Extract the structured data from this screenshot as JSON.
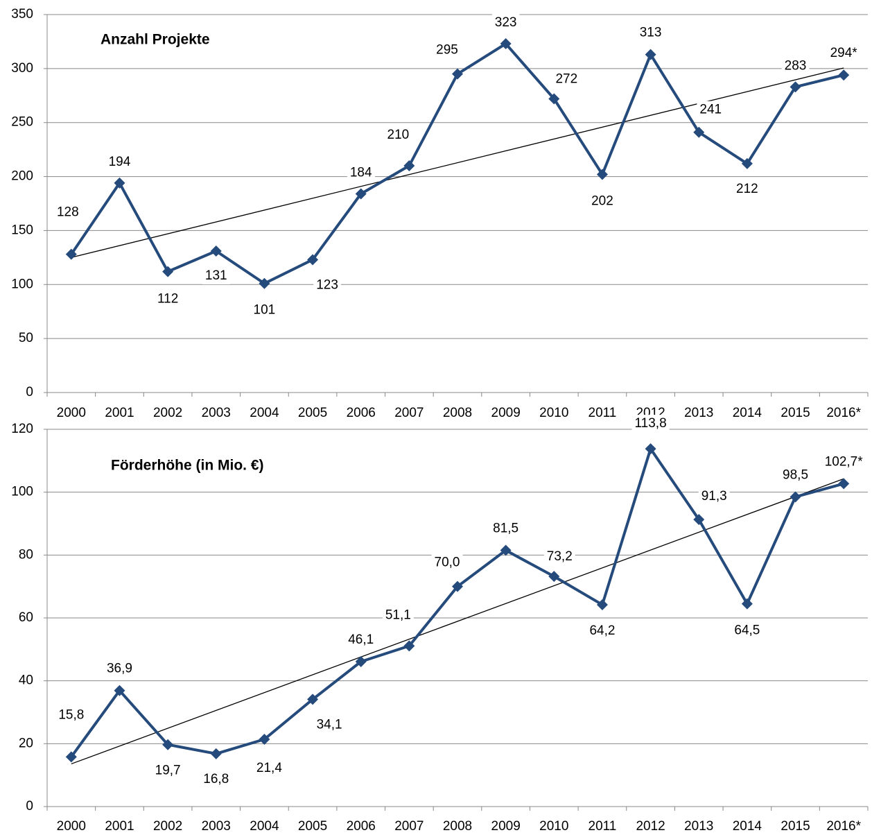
{
  "chart_data": [
    {
      "type": "line",
      "title": "Anzahl Projekte",
      "categories": [
        "2000",
        "2001",
        "2002",
        "2003",
        "2004",
        "2005",
        "2006",
        "2007",
        "2008",
        "2009",
        "2010",
        "2011",
        "2012",
        "2013",
        "2014",
        "2015",
        "2016*"
      ],
      "series": [
        {
          "name": "Anzahl Projekte",
          "color": "#254a7c",
          "values": [
            128,
            194,
            112,
            131,
            101,
            123,
            184,
            210,
            295,
            323,
            272,
            202,
            313,
            241,
            212,
            283,
            294
          ],
          "value_labels": [
            "128",
            "194",
            "112",
            "131",
            "101",
            "123",
            "184",
            "210",
            "295",
            "323",
            "272",
            "202",
            "313",
            "241",
            "212",
            "283",
            "294*"
          ]
        }
      ],
      "ylim": [
        0,
        350
      ],
      "yticks": [
        0,
        50,
        100,
        150,
        200,
        250,
        300,
        350
      ],
      "grid": true,
      "trendline": true
    },
    {
      "type": "line",
      "title": "Förderhöhe (in Mio. €)",
      "categories": [
        "2000",
        "2001",
        "2002",
        "2003",
        "2004",
        "2005",
        "2006",
        "2007",
        "2008",
        "2009",
        "2010",
        "2011",
        "2012",
        "2013",
        "2014",
        "2015",
        "2016*"
      ],
      "series": [
        {
          "name": "Förderhöhe (in Mio. €)",
          "color": "#254a7c",
          "values": [
            15.8,
            36.9,
            19.7,
            16.8,
            21.4,
            34.1,
            46.1,
            51.1,
            70.0,
            81.5,
            73.2,
            64.2,
            113.8,
            91.3,
            64.5,
            98.5,
            102.7
          ],
          "value_labels": [
            "15,8",
            "36,9",
            "19,7",
            "16,8",
            "21,4",
            "34,1",
            "46,1",
            "51,1",
            "70,0",
            "81,5",
            "73,2",
            "64,2",
            "113,8",
            "91,3",
            "64,5",
            "98,5",
            "102,7*"
          ]
        }
      ],
      "ylim": [
        0,
        120
      ],
      "yticks": [
        0,
        20,
        40,
        60,
        80,
        100,
        120
      ],
      "grid": true,
      "trendline": true
    }
  ]
}
